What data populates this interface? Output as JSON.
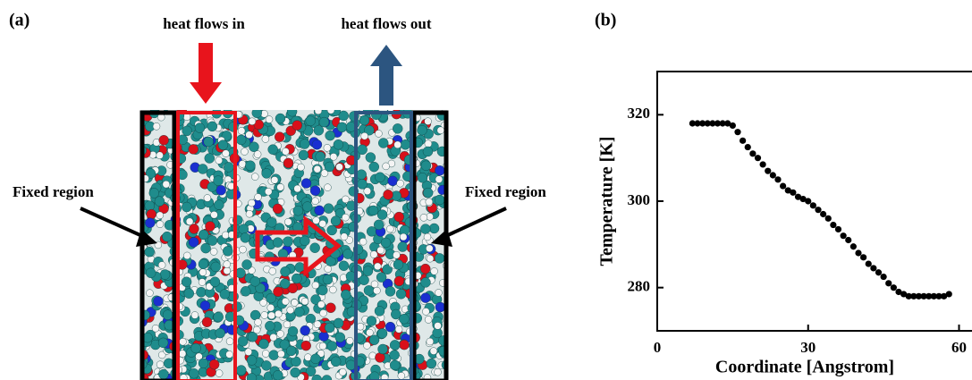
{
  "panel_labels": [
    "(a)",
    "(b)"
  ],
  "diagram": {
    "heat_in": "heat flows in",
    "heat_out": "heat flows out",
    "fixed_left": "Fixed region",
    "fixed_right": "Fixed region"
  },
  "chart_data": {
    "type": "scatter",
    "xlabel": "Coordinate [Angstrom]",
    "ylabel": "Temperature [K]",
    "x": [
      7,
      8,
      9,
      10,
      11,
      12,
      13,
      14,
      15,
      16,
      17,
      18,
      19,
      20,
      21,
      22,
      23,
      24,
      25,
      26,
      27,
      28,
      29,
      30,
      31,
      32,
      33,
      34,
      35,
      36,
      37,
      38,
      39,
      40,
      41,
      42,
      43,
      44,
      45,
      46,
      47,
      48,
      49,
      50,
      51,
      52,
      53,
      54,
      55,
      56,
      57,
      58
    ],
    "values": [
      318,
      318,
      318,
      318,
      318,
      318,
      318,
      318,
      317.5,
      316,
      314,
      312.5,
      311,
      310,
      308.5,
      307,
      306,
      305,
      303.5,
      302.5,
      302,
      301,
      300.5,
      300,
      299,
      298,
      297,
      296,
      294.5,
      293.5,
      292,
      291,
      289.5,
      288,
      287,
      285.5,
      284.5,
      283.5,
      282.5,
      281,
      280,
      279,
      278.5,
      278,
      278,
      278,
      278,
      278,
      278,
      278,
      278,
      278.5
    ],
    "color": "#000000",
    "xlim": [
      0,
      64
    ],
    "ylim": [
      270,
      330
    ],
    "xticks": [
      0,
      30,
      60
    ],
    "yticks": [
      280,
      300,
      320
    ],
    "grid": false
  }
}
